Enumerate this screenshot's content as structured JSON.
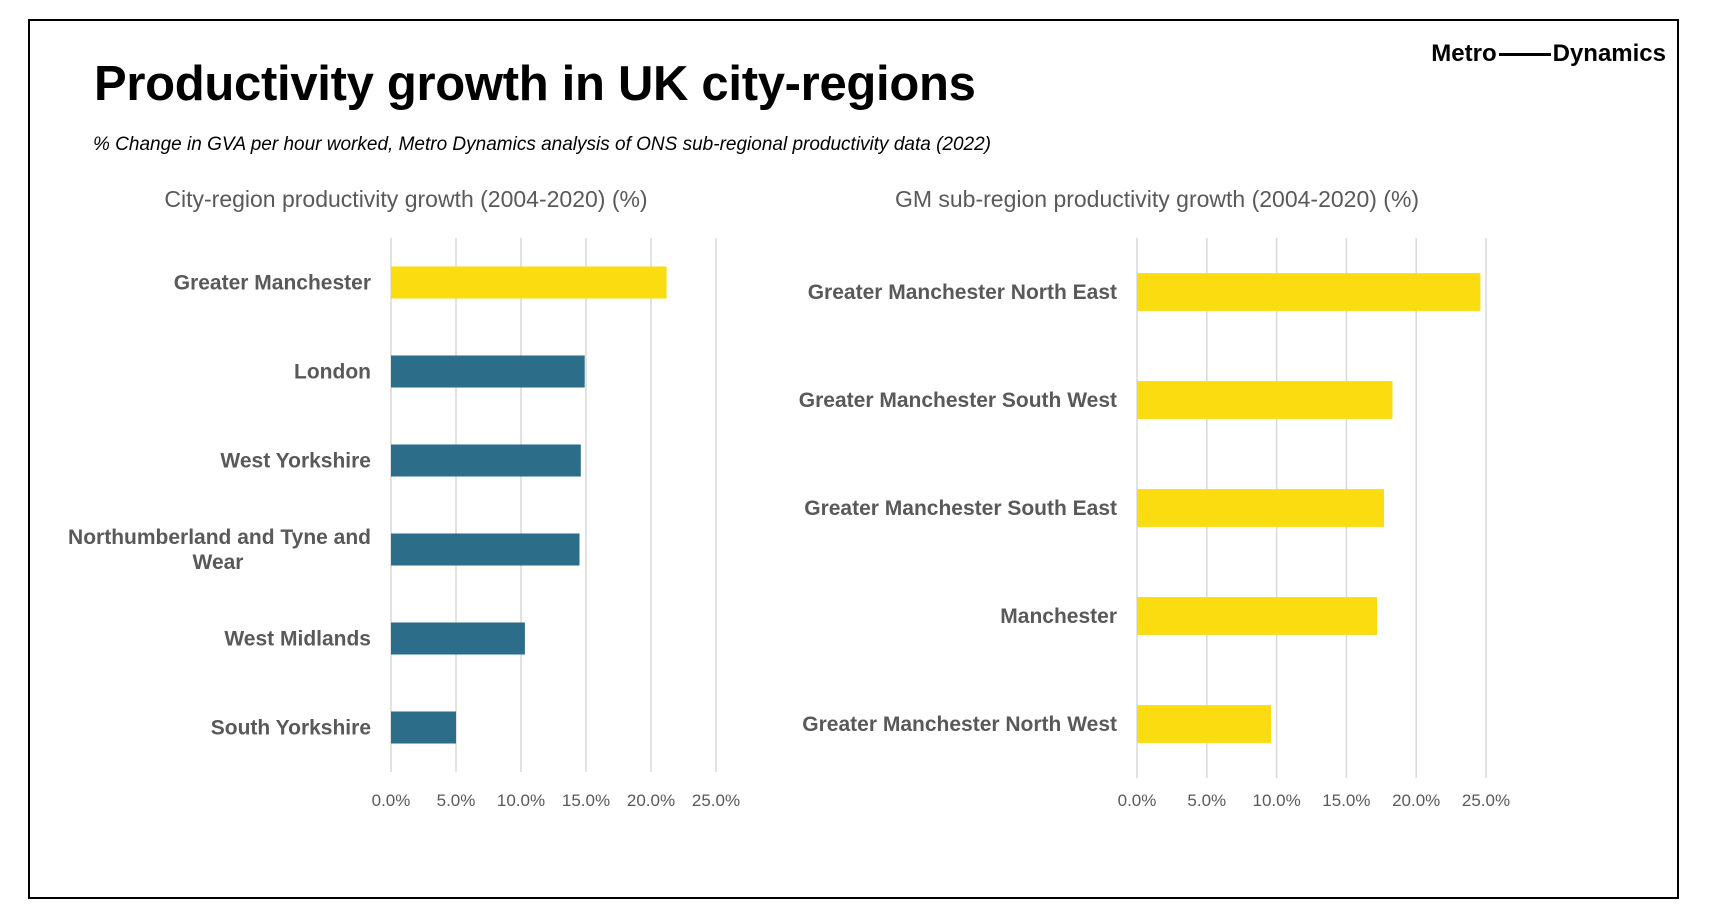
{
  "title": "Productivity growth in UK city-regions",
  "subtitle": "% Change in GVA per hour worked, Metro Dynamics analysis of ONS sub-regional productivity data (2022)",
  "logo": {
    "left": "Metro",
    "right": "Dynamics"
  },
  "colors": {
    "highlight": "#FADC11",
    "base": "#2C6E8A",
    "text": "#595959",
    "grid": "#D9D9D9"
  },
  "chart_data": [
    {
      "type": "bar",
      "orientation": "horizontal",
      "title": "City-region productivity growth (2004-2020) (%)",
      "categories": [
        "Greater Manchester",
        "London",
        "West Yorkshire",
        "Northumberland and Tyne and Wear",
        "West Midlands",
        "South Yorkshire"
      ],
      "category_lines": [
        [
          "Greater Manchester"
        ],
        [
          "London"
        ],
        [
          "West Yorkshire"
        ],
        [
          "Northumberland and Tyne and",
          "Wear"
        ],
        [
          "West Midlands"
        ],
        [
          "South Yorkshire"
        ]
      ],
      "values": [
        21.2,
        14.9,
        14.6,
        14.5,
        10.3,
        5.0
      ],
      "bar_colors": [
        "#FADC11",
        "#2C6E8A",
        "#2C6E8A",
        "#2C6E8A",
        "#2C6E8A",
        "#2C6E8A"
      ],
      "xlim": [
        0,
        25
      ],
      "xticks": [
        "0.0%",
        "5.0%",
        "10.0%",
        "15.0%",
        "20.0%",
        "25.0%"
      ],
      "grid": true
    },
    {
      "type": "bar",
      "orientation": "horizontal",
      "title": "GM sub-region productivity growth (2004-2020) (%)",
      "categories": [
        "Greater Manchester North East",
        "Greater Manchester South West",
        "Greater Manchester South East",
        "Manchester",
        "Greater Manchester North West"
      ],
      "category_lines": [
        [
          "Greater Manchester North East"
        ],
        [
          "Greater Manchester South West"
        ],
        [
          "Greater Manchester South East"
        ],
        [
          "Manchester"
        ],
        [
          "Greater Manchester North West"
        ]
      ],
      "values": [
        24.6,
        18.3,
        17.7,
        17.2,
        9.6
      ],
      "bar_colors": [
        "#FADC11",
        "#FADC11",
        "#FADC11",
        "#FADC11",
        "#FADC11"
      ],
      "xlim": [
        0,
        25
      ],
      "xticks": [
        "0.0%",
        "5.0%",
        "10.0%",
        "15.0%",
        "20.0%",
        "25.0%"
      ],
      "grid": true
    }
  ]
}
